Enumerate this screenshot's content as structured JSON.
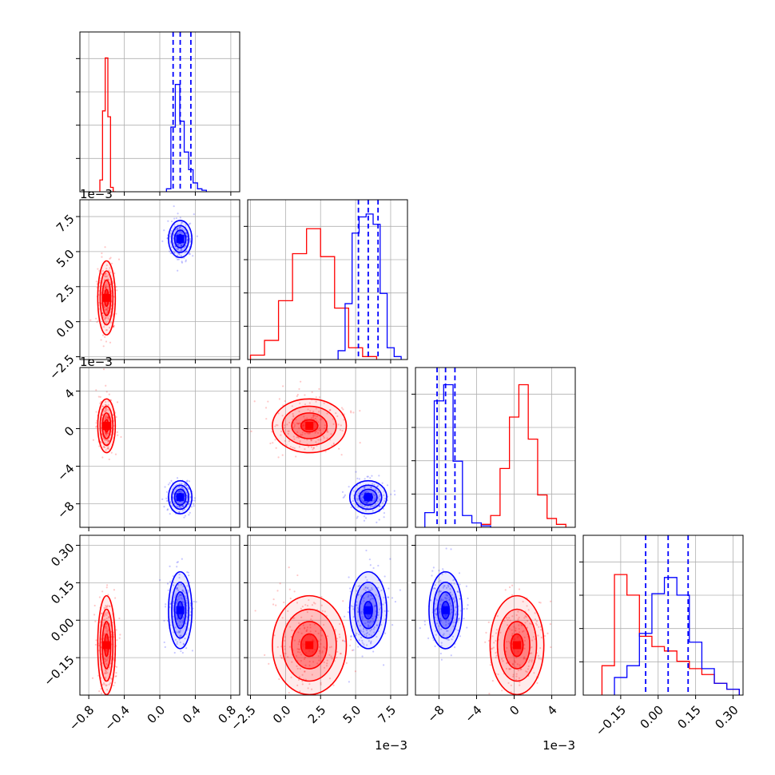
{
  "chart_data": {
    "type": "corner",
    "grid": true,
    "series": [
      {
        "color": "#ff0000",
        "mean": [
          -0.6,
          0.0017,
          0.0003,
          -0.1
        ],
        "std": [
          0.045,
          0.0012,
          0.0013,
          0.09
        ],
        "histograms": [
          {
            "x": [
              -0.66,
              -0.63,
              -0.6,
              -0.57,
              -0.54,
              -0.51
            ],
            "h": [
              0.08,
              0.55,
              0.91,
              0.51,
              0.03,
              0.0
            ]
          },
          {
            "x": [
              -2.0,
              -1.0,
              0.0,
              1.0,
              2.0,
              3.0,
              4.0,
              5.0,
              6.0
            ],
            "h": [
              0.03,
              0.13,
              0.4,
              0.72,
              0.89,
              0.7,
              0.35,
              0.08,
              0.02
            ]
          },
          {
            "x": [
              -3.0,
              -2.0,
              -1.0,
              0.0,
              1.0,
              2.0,
              3.0,
              4.0,
              5.0
            ],
            "h": [
              0.02,
              0.08,
              0.4,
              0.75,
              0.97,
              0.6,
              0.22,
              0.06,
              0.02
            ]
          },
          {
            "x": [
              -0.2,
              -0.15,
              -0.1,
              -0.05,
              0.0,
              0.05,
              0.1,
              0.15,
              0.2,
              0.25,
              0.3
            ],
            "h": [
              0.2,
              0.82,
              0.68,
              0.4,
              0.33,
              0.3,
              0.23,
              0.18,
              0.14,
              0.08,
              0.04
            ]
          }
        ]
      },
      {
        "color": "#0000ff",
        "mean": [
          0.23,
          0.0059,
          -0.0073,
          0.04
        ],
        "std": [
          0.06,
          0.0006,
          0.0008,
          0.07
        ],
        "quantiles": [
          [
            0.15,
            0.23,
            0.35
          ],
          [
            0.0052,
            0.0059,
            0.0066
          ],
          [
            -0.0082,
            -0.0073,
            -0.0063
          ],
          [
            -0.05,
            0.04,
            0.12
          ]
        ],
        "histograms": [
          {
            "x": [
              0.1,
              0.15,
              0.2,
              0.25,
              0.3,
              0.35,
              0.4,
              0.45,
              0.5
            ],
            "h": [
              0.02,
              0.44,
              0.73,
              0.48,
              0.27,
              0.15,
              0.06,
              0.02,
              0.01
            ]
          },
          {
            "x": [
              4.0,
              4.5,
              5.0,
              5.5,
              6.0,
              6.5,
              7.0,
              7.5,
              8.0
            ],
            "h": [
              0.06,
              0.38,
              0.86,
              0.97,
              0.99,
              0.92,
              0.45,
              0.08,
              0.02
            ]
          },
          {
            "x": [
              -9.0,
              -8.0,
              -7.0,
              -6.0,
              -5.0,
              -4.0,
              -3.0
            ],
            "h": [
              0.1,
              0.86,
              0.97,
              0.45,
              0.08,
              0.03,
              0.01
            ]
          },
          {
            "x": [
              -0.15,
              -0.1,
              -0.05,
              0.0,
              0.05,
              0.1,
              0.15,
              0.2,
              0.25,
              0.3
            ],
            "h": [
              0.12,
              0.2,
              0.42,
              0.69,
              0.8,
              0.68,
              0.36,
              0.18,
              0.08,
              0.04
            ]
          }
        ]
      }
    ],
    "axes": [
      {
        "range": [
          -0.9,
          0.9
        ],
        "ticks": [
          "−0.8",
          "−0.4",
          "0.0",
          "0.4",
          "0.8"
        ],
        "tick_values": [
          -0.8,
          -0.4,
          0.0,
          0.4,
          0.8
        ],
        "offset": ""
      },
      {
        "range": [
          -0.0027,
          0.0087
        ],
        "ticks": [
          "−2.5",
          "0.0",
          "2.5",
          "5.0",
          "7.5"
        ],
        "tick_values": [
          -0.0025,
          0.0,
          0.0025,
          0.005,
          0.0075
        ],
        "offset": "1e−3"
      },
      {
        "range": [
          -0.0105,
          0.0065
        ],
        "ticks": [
          "−8",
          "−4",
          "0",
          "4"
        ],
        "tick_values": [
          -0.008,
          -0.004,
          0.0,
          0.004
        ],
        "offset": "1e−3"
      },
      {
        "range": [
          -0.3,
          0.34
        ],
        "ticks": [
          "−0.15",
          "0.00",
          "0.15",
          "0.30"
        ],
        "tick_values": [
          -0.15,
          0.0,
          0.15,
          0.3
        ],
        "offset": ""
      }
    ]
  }
}
